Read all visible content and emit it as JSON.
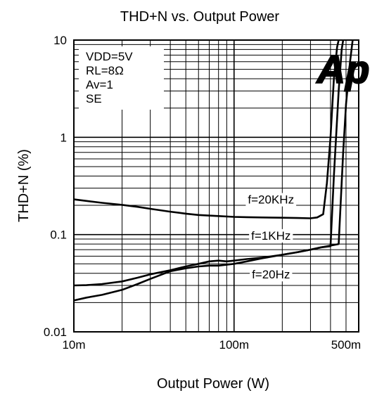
{
  "chart_data": {
    "type": "line",
    "title": "THD+N vs. Output Power",
    "xlabel": "Output Power (W)",
    "ylabel": "THD+N (%)",
    "x_scale": "log",
    "y_scale": "log",
    "xlim": [
      0.01,
      0.6
    ],
    "ylim": [
      0.01,
      10
    ],
    "grid": true,
    "x_ticks": [
      {
        "value": 0.01,
        "label": "10m"
      },
      {
        "value": 0.1,
        "label": "100m"
      },
      {
        "value": 0.5,
        "label": "500m"
      }
    ],
    "y_ticks": [
      {
        "value": 0.01,
        "label": "0.01"
      },
      {
        "value": 0.1,
        "label": "0.1"
      },
      {
        "value": 1,
        "label": "1"
      },
      {
        "value": 10,
        "label": "10"
      }
    ],
    "conditions": [
      "VDD=5V",
      "RL=8Ω",
      "Av=1",
      "SE"
    ],
    "logo": "Ap",
    "series": [
      {
        "name": "f=20KHz",
        "points": [
          [
            0.01,
            0.23
          ],
          [
            0.012,
            0.222
          ],
          [
            0.015,
            0.212
          ],
          [
            0.02,
            0.202
          ],
          [
            0.025,
            0.193
          ],
          [
            0.03,
            0.184
          ],
          [
            0.04,
            0.172
          ],
          [
            0.05,
            0.164
          ],
          [
            0.06,
            0.159
          ],
          [
            0.08,
            0.155
          ],
          [
            0.1,
            0.152
          ],
          [
            0.12,
            0.151
          ],
          [
            0.15,
            0.15
          ],
          [
            0.2,
            0.149
          ],
          [
            0.25,
            0.148
          ],
          [
            0.3,
            0.147
          ],
          [
            0.33,
            0.15
          ],
          [
            0.36,
            0.162
          ],
          [
            0.38,
            0.34
          ],
          [
            0.4,
            1.0
          ],
          [
            0.42,
            4.0
          ],
          [
            0.44,
            8.5
          ],
          [
            0.45,
            10.0
          ]
        ]
      },
      {
        "name": "f=1KHz",
        "points": [
          [
            0.01,
            0.03
          ],
          [
            0.012,
            0.0302
          ],
          [
            0.015,
            0.031
          ],
          [
            0.02,
            0.033
          ],
          [
            0.025,
            0.036
          ],
          [
            0.03,
            0.039
          ],
          [
            0.04,
            0.043
          ],
          [
            0.05,
            0.047
          ],
          [
            0.06,
            0.05
          ],
          [
            0.07,
            0.053
          ],
          [
            0.08,
            0.054
          ],
          [
            0.09,
            0.053
          ],
          [
            0.1,
            0.054
          ],
          [
            0.12,
            0.056
          ],
          [
            0.15,
            0.058
          ],
          [
            0.2,
            0.062
          ],
          [
            0.25,
            0.066
          ],
          [
            0.3,
            0.07
          ],
          [
            0.35,
            0.074
          ],
          [
            0.4,
            0.076
          ],
          [
            0.42,
            0.4
          ],
          [
            0.45,
            3.0
          ],
          [
            0.47,
            8.0
          ],
          [
            0.48,
            10.0
          ]
        ]
      },
      {
        "name": "f=20Hz",
        "points": [
          [
            0.01,
            0.021
          ],
          [
            0.012,
            0.0225
          ],
          [
            0.015,
            0.024
          ],
          [
            0.02,
            0.027
          ],
          [
            0.025,
            0.031
          ],
          [
            0.03,
            0.035
          ],
          [
            0.04,
            0.042
          ],
          [
            0.05,
            0.045
          ],
          [
            0.06,
            0.047
          ],
          [
            0.07,
            0.048
          ],
          [
            0.08,
            0.048
          ],
          [
            0.1,
            0.05
          ],
          [
            0.12,
            0.053
          ],
          [
            0.15,
            0.057
          ],
          [
            0.2,
            0.062
          ],
          [
            0.25,
            0.066
          ],
          [
            0.3,
            0.07
          ],
          [
            0.35,
            0.074
          ],
          [
            0.4,
            0.077
          ],
          [
            0.45,
            0.08
          ],
          [
            0.48,
            0.7
          ],
          [
            0.5,
            2.2
          ],
          [
            0.53,
            6.0
          ],
          [
            0.55,
            10.0
          ]
        ]
      }
    ],
    "annotations": [
      {
        "text": "f=20KHz",
        "x": 0.17,
        "y": 0.23
      },
      {
        "text": "f=1KHz",
        "x": 0.17,
        "y": 0.098
      },
      {
        "text": "f=20Hz",
        "x": 0.17,
        "y": 0.039
      }
    ],
    "colors": {
      "line": "#000000",
      "background": "#ffffff",
      "grid": "#000000"
    }
  }
}
